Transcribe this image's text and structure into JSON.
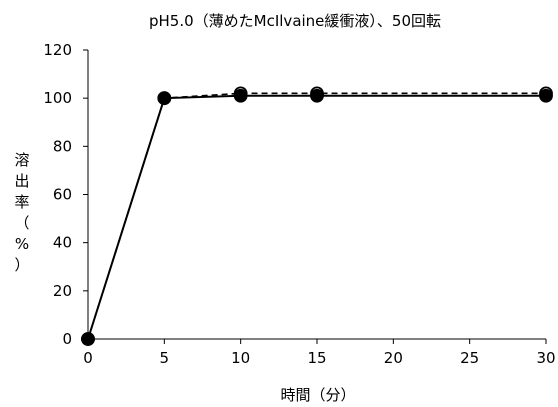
{
  "chart_data": {
    "type": "line",
    "title": "pH5.0（薄めたMcIlvaine緩衝液）、50回転",
    "xlabel": "時間（分）",
    "ylabel": "溶出率（%）",
    "x": [
      0,
      5,
      10,
      15,
      30
    ],
    "xlim": [
      0,
      30
    ],
    "ylim": [
      0,
      120
    ],
    "xticks": [
      0,
      5,
      10,
      15,
      20,
      25,
      30
    ],
    "yticks": [
      0,
      20,
      40,
      60,
      80,
      100,
      120
    ],
    "grid": false,
    "series": [
      {
        "style": "solid",
        "marker": "filled-circle",
        "values": [
          0,
          100,
          101,
          101,
          101
        ]
      },
      {
        "style": "dashed",
        "marker": "open-circle",
        "values": [
          0,
          100,
          102,
          102,
          102
        ]
      }
    ],
    "colors": {
      "line": "#000000",
      "background": "#ffffff"
    }
  }
}
